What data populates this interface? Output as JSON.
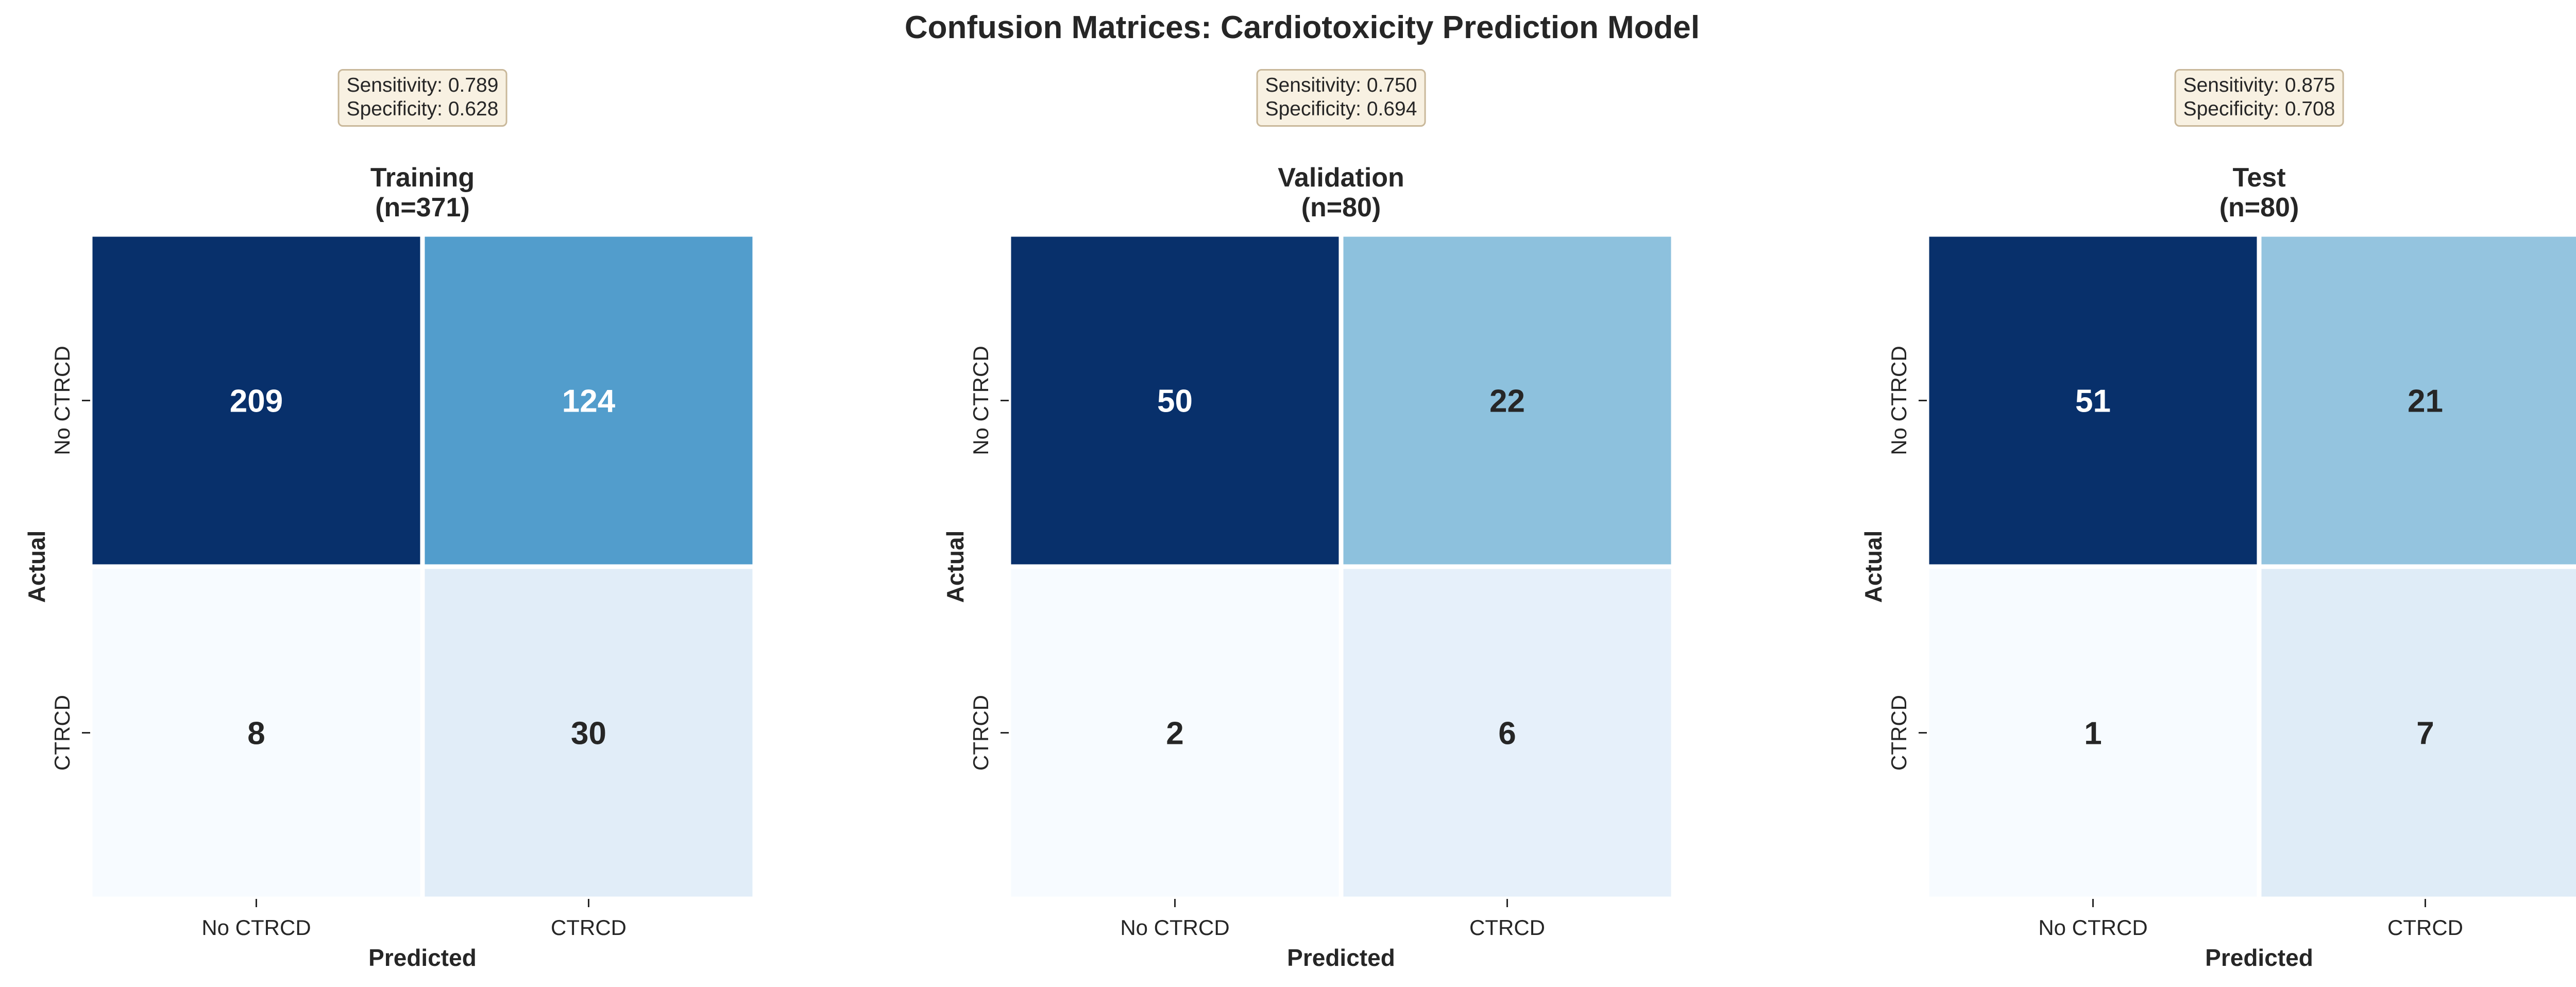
{
  "title": "Confusion Matrices: Cardiotoxicity Prediction Model",
  "colors": {
    "cmap": "Blues",
    "dark_text": "#262626",
    "light_text": "#ffffff",
    "box_fill": "#f8f1e2",
    "box_edge": "#c9b89a"
  },
  "chart_data": [
    {
      "type": "heatmap",
      "title": "Training",
      "subtitle": "(n=371)",
      "metrics": [
        "Sensitivity: 0.789",
        "Specificity: 0.628"
      ],
      "xlabel": "Predicted",
      "ylabel": "Actual",
      "x_categories": [
        "No CTRCD",
        "CTRCD"
      ],
      "y_categories": [
        "No CTRCD",
        "CTRCD"
      ],
      "values": [
        [
          209,
          124
        ],
        [
          8,
          30
        ]
      ]
    },
    {
      "type": "heatmap",
      "title": "Validation",
      "subtitle": "(n=80)",
      "metrics": [
        "Sensitivity: 0.750",
        "Specificity: 0.694"
      ],
      "xlabel": "Predicted",
      "ylabel": "Actual",
      "x_categories": [
        "No CTRCD",
        "CTRCD"
      ],
      "y_categories": [
        "No CTRCD",
        "CTRCD"
      ],
      "values": [
        [
          50,
          22
        ],
        [
          2,
          6
        ]
      ]
    },
    {
      "type": "heatmap",
      "title": "Test",
      "subtitle": "(n=80)",
      "metrics": [
        "Sensitivity: 0.875",
        "Specificity: 0.708"
      ],
      "xlabel": "Predicted",
      "ylabel": "Actual",
      "x_categories": [
        "No CTRCD",
        "CTRCD"
      ],
      "y_categories": [
        "No CTRCD",
        "CTRCD"
      ],
      "values": [
        [
          51,
          21
        ],
        [
          1,
          7
        ]
      ]
    }
  ]
}
